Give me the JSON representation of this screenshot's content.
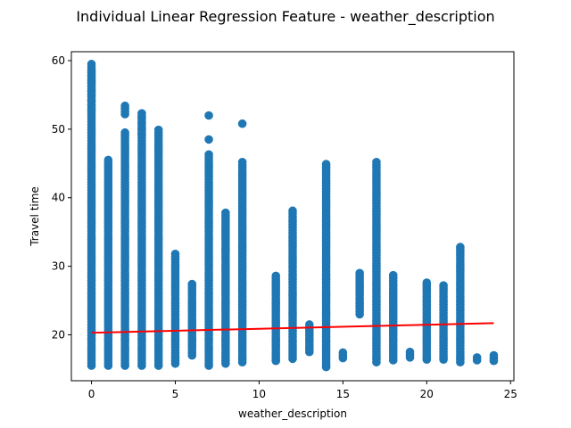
{
  "chart_data": {
    "type": "scatter",
    "title": "Individual Linear Regression Feature - weather_description",
    "xlabel": "weather_description",
    "ylabel": "Travel time",
    "xlim": [
      -1.2,
      25.2
    ],
    "ylim": [
      13.3,
      61.3
    ],
    "xticks": [
      0,
      5,
      10,
      15,
      20,
      25
    ],
    "yticks": [
      20,
      30,
      40,
      50,
      60
    ],
    "grid": false,
    "legend": "none",
    "point_color": "#1f77b4",
    "line_color": "#ff0000",
    "columns": [
      {
        "x": 0,
        "min": 15.5,
        "max": 59.8,
        "extra": [
          58.5,
          57.8,
          57.2,
          56.8,
          56.3,
          55.6,
          55.0,
          54.2,
          53.5,
          52.8
        ]
      },
      {
        "x": 1,
        "min": 15.5,
        "max": 45.8,
        "extra": []
      },
      {
        "x": 2,
        "min": 15.5,
        "max": 49.8,
        "extra": [
          53.4,
          53.0,
          52.6,
          52.2
        ]
      },
      {
        "x": 3,
        "min": 15.5,
        "max": 52.5,
        "extra": [
          51.7,
          50.9,
          50.0,
          49.3
        ]
      },
      {
        "x": 4,
        "min": 15.5,
        "max": 50.2,
        "extra": []
      },
      {
        "x": 5,
        "min": 15.8,
        "max": 31.8,
        "extra": []
      },
      {
        "x": 6,
        "min": 17.0,
        "max": 27.5,
        "extra": []
      },
      {
        "x": 7,
        "min": 15.5,
        "max": 46.3,
        "extra": [
          48.5,
          52.0
        ]
      },
      {
        "x": 8,
        "min": 15.8,
        "max": 37.8,
        "extra": []
      },
      {
        "x": 9,
        "min": 16.0,
        "max": 45.3,
        "extra": [
          50.8
        ]
      },
      {
        "x": 11,
        "min": 16.2,
        "max": 28.7,
        "extra": []
      },
      {
        "x": 12,
        "min": 16.5,
        "max": 38.4,
        "extra": []
      },
      {
        "x": 13,
        "min": 17.5,
        "max": 21.6,
        "extra": []
      },
      {
        "x": 14,
        "min": 15.3,
        "max": 45.0,
        "extra": []
      },
      {
        "x": 15,
        "min": 16.6,
        "max": 17.5,
        "extra": []
      },
      {
        "x": 16,
        "min": 23.0,
        "max": 29.0,
        "extra": []
      },
      {
        "x": 17,
        "min": 16.0,
        "max": 45.5,
        "extra": []
      },
      {
        "x": 18,
        "min": 16.3,
        "max": 29.0,
        "extra": []
      },
      {
        "x": 19,
        "min": 16.7,
        "max": 17.5,
        "extra": []
      },
      {
        "x": 20,
        "min": 16.4,
        "max": 27.6,
        "extra": []
      },
      {
        "x": 21,
        "min": 16.4,
        "max": 27.3,
        "extra": []
      },
      {
        "x": 22,
        "min": 16.0,
        "max": 33.0,
        "extra": []
      },
      {
        "x": 23,
        "min": 16.3,
        "max": 16.8,
        "extra": []
      },
      {
        "x": 24,
        "min": 16.2,
        "max": 17.0,
        "extra": []
      }
    ],
    "regression_line": {
      "x": [
        0,
        24
      ],
      "y": [
        20.3,
        21.7
      ]
    }
  }
}
